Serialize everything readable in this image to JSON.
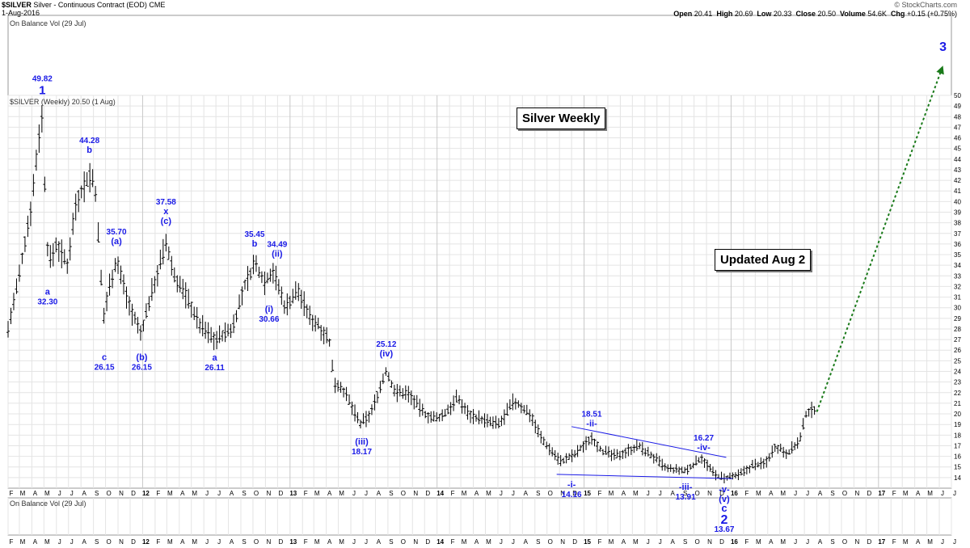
{
  "header": {
    "symbol": "$SILVER",
    "description": "Silver - Continuous Contract (EOD) CME",
    "date": "1-Aug-2016",
    "brand": "© StockCharts.com",
    "quote": {
      "open_label": "Open",
      "open": "20.41",
      "high_label": "High",
      "high": "20.69",
      "low_label": "Low",
      "low": "20.33",
      "close_label": "Close",
      "close": "20.50",
      "volume_label": "Volume",
      "volume": "54.6K",
      "chg_label": "Chg",
      "chg": "+0.15 (+0.75%)"
    }
  },
  "panels": {
    "top_indicator": "On Balance Vol (29 Jul)",
    "price_legend": "$SILVER (Weekly) 20.50 (1 Aug)",
    "bottom_indicator": "On Balance Vol (29 Jul)"
  },
  "labels": {
    "title_box": "Silver Weekly",
    "updated_box": "Updated Aug 2"
  },
  "colors": {
    "wave": "#1a1ae6",
    "projection": "#1a7a1a",
    "bars": "#000000",
    "grid": "#e4e4e4"
  },
  "chart_data": {
    "type": "bar",
    "price_axis": {
      "min": 13,
      "max": 50,
      "ticks": [
        14,
        15,
        16,
        17,
        18,
        19,
        20,
        21,
        22,
        23,
        24,
        25,
        26,
        27,
        28,
        29,
        30,
        31,
        32,
        33,
        34,
        35,
        36,
        37,
        38,
        39,
        40,
        41,
        42,
        43,
        44,
        45,
        46,
        47,
        48,
        49,
        50
      ]
    },
    "time_axis": {
      "start": "2011-02-01",
      "end": "2017-07-01",
      "months": [
        "F",
        "M",
        "A",
        "M",
        "J",
        "J",
        "A",
        "S",
        "O",
        "N",
        "D",
        "12",
        "F",
        "M",
        "A",
        "M",
        "J",
        "J",
        "A",
        "S",
        "O",
        "N",
        "D",
        "13",
        "F",
        "M",
        "A",
        "M",
        "J",
        "J",
        "A",
        "S",
        "O",
        "N",
        "D",
        "14",
        "F",
        "M",
        "A",
        "M",
        "J",
        "J",
        "A",
        "S",
        "O",
        "N",
        "D",
        "15",
        "F",
        "M",
        "A",
        "M",
        "J",
        "J",
        "A",
        "S",
        "O",
        "N",
        "D",
        "16",
        "F",
        "M",
        "A",
        "M",
        "J",
        "J",
        "A",
        "S",
        "O",
        "N",
        "D",
        "17",
        "F",
        "M",
        "A",
        "M",
        "J",
        "J"
      ]
    },
    "price_anchors": [
      [
        "2011-02-01",
        28
      ],
      [
        "2011-03-01",
        33
      ],
      [
        "2011-04-01",
        40
      ],
      [
        "2011-04-25",
        48.5
      ],
      [
        "2011-05-12",
        34
      ],
      [
        "2011-06-01",
        36
      ],
      [
        "2011-06-28",
        34
      ],
      [
        "2011-07-20",
        40
      ],
      [
        "2011-08-22",
        42.5
      ],
      [
        "2011-09-05",
        41.5
      ],
      [
        "2011-09-26",
        29
      ],
      [
        "2011-10-10",
        32
      ],
      [
        "2011-10-28",
        34.5
      ],
      [
        "2011-12-01",
        30
      ],
      [
        "2011-12-28",
        27.5
      ],
      [
        "2012-01-20",
        31
      ],
      [
        "2012-02-28",
        36
      ],
      [
        "2012-03-20",
        33
      ],
      [
        "2012-04-20",
        31
      ],
      [
        "2012-05-20",
        28.5
      ],
      [
        "2012-06-28",
        27
      ],
      [
        "2012-08-10",
        28
      ],
      [
        "2012-09-10",
        32
      ],
      [
        "2012-10-05",
        34.2
      ],
      [
        "2012-10-30",
        32.5
      ],
      [
        "2012-11-20",
        33.5
      ],
      [
        "2012-12-20",
        30
      ],
      [
        "2013-01-20",
        31.7
      ],
      [
        "2013-02-20",
        29
      ],
      [
        "2013-03-10",
        28.5
      ],
      [
        "2013-04-08",
        27
      ],
      [
        "2013-04-20",
        23
      ],
      [
        "2013-05-10",
        22.5
      ],
      [
        "2013-06-25",
        19
      ],
      [
        "2013-07-20",
        20
      ],
      [
        "2013-08-27",
        24
      ],
      [
        "2013-09-20",
        22
      ],
      [
        "2013-10-20",
        22
      ],
      [
        "2013-12-01",
        20
      ],
      [
        "2013-12-30",
        19.5
      ],
      [
        "2014-01-20",
        20
      ],
      [
        "2014-02-20",
        21.5
      ],
      [
        "2014-03-20",
        20
      ],
      [
        "2014-05-10",
        19.2
      ],
      [
        "2014-06-05",
        19
      ],
      [
        "2014-07-10",
        21.2
      ],
      [
        "2014-08-20",
        20
      ],
      [
        "2014-09-20",
        17.5
      ],
      [
        "2014-11-05",
        15.5
      ],
      [
        "2014-12-10",
        16.2
      ],
      [
        "2015-01-20",
        17.8
      ],
      [
        "2015-02-15",
        16.5
      ],
      [
        "2015-03-20",
        16
      ],
      [
        "2015-05-15",
        17
      ],
      [
        "2015-06-20",
        16
      ],
      [
        "2015-07-25",
        14.8
      ],
      [
        "2015-09-10",
        14.6
      ],
      [
        "2015-10-20",
        15.9
      ],
      [
        "2015-11-20",
        14.3
      ],
      [
        "2015-12-15",
        13.9
      ],
      [
        "2016-01-20",
        14.2
      ],
      [
        "2016-02-25",
        15.2
      ],
      [
        "2016-03-25",
        15.3
      ],
      [
        "2016-04-20",
        17
      ],
      [
        "2016-05-20",
        16.3
      ],
      [
        "2016-06-20",
        17.5
      ],
      [
        "2016-07-05",
        20
      ],
      [
        "2016-07-28",
        20.5
      ]
    ],
    "wave_labels": [
      {
        "date": "2011-04-27",
        "price": 49.82,
        "value": "49.82",
        "mark": "1",
        "pos": "above",
        "big": true
      },
      {
        "date": "2011-05-10",
        "price": 32.3,
        "value": "32.30",
        "mark": "a",
        "pos": "below"
      },
      {
        "date": "2011-08-22",
        "price": 44.28,
        "value": "44.28",
        "mark": "b",
        "pos": "above"
      },
      {
        "date": "2011-09-28",
        "price": 26.15,
        "value": "26.15",
        "mark": "c",
        "pos": "below"
      },
      {
        "date": "2011-10-28",
        "price": 35.7,
        "value": "35.70",
        "mark": "(a)",
        "pos": "above"
      },
      {
        "date": "2011-12-30",
        "price": 26.15,
        "value": "26.15",
        "mark": "(b)",
        "pos": "below"
      },
      {
        "date": "2012-02-28",
        "price": 37.58,
        "value": "37.58",
        "mark": "x",
        "mark2": "(c)",
        "pos": "above"
      },
      {
        "date": "2012-06-28",
        "price": 26.11,
        "value": "26.11",
        "mark": "a",
        "pos": "below"
      },
      {
        "date": "2012-10-05",
        "price": 35.45,
        "value": "35.45",
        "mark": "b",
        "pos": "above"
      },
      {
        "date": "2012-11-30",
        "price": 34.49,
        "value": "34.49",
        "mark": "(ii)",
        "pos": "above"
      },
      {
        "date": "2012-11-10",
        "price": 30.66,
        "value": "30.66",
        "mark": "(i)",
        "pos": "below"
      },
      {
        "date": "2013-06-28",
        "price": 18.17,
        "value": "18.17",
        "mark": "(iii)",
        "pos": "below"
      },
      {
        "date": "2013-08-28",
        "price": 25.12,
        "value": "25.12",
        "mark": "(iv)",
        "pos": "above"
      },
      {
        "date": "2014-12-01",
        "price": 14.16,
        "value": "14.16",
        "mark": "-i-",
        "pos": "below"
      },
      {
        "date": "2015-01-20",
        "price": 18.51,
        "value": "18.51",
        "mark": "-ii-",
        "pos": "above"
      },
      {
        "date": "2015-09-10",
        "price": 13.91,
        "value": "13.91",
        "mark": "-iii-",
        "pos": "below"
      },
      {
        "date": "2015-10-25",
        "price": 16.27,
        "value": "16.27",
        "mark": "-iv-",
        "pos": "above"
      },
      {
        "date": "2015-12-15",
        "price": 13.67,
        "value": "13.67",
        "mark": "-v-",
        "mark2": "(v)",
        "mark3": "c",
        "mark4": "2",
        "pos": "below"
      }
    ],
    "projection": {
      "from": [
        "2016-08-01",
        20.2
      ],
      "to": [
        "2017-06-10",
        52.8
      ],
      "label": "3"
    },
    "trendlines": [
      {
        "from": [
          "2014-12-01",
          18.8
        ],
        "to": [
          "2015-12-20",
          15.9
        ]
      },
      {
        "from": [
          "2014-10-25",
          14.3
        ],
        "to": [
          "2016-01-05",
          13.9
        ]
      }
    ]
  }
}
